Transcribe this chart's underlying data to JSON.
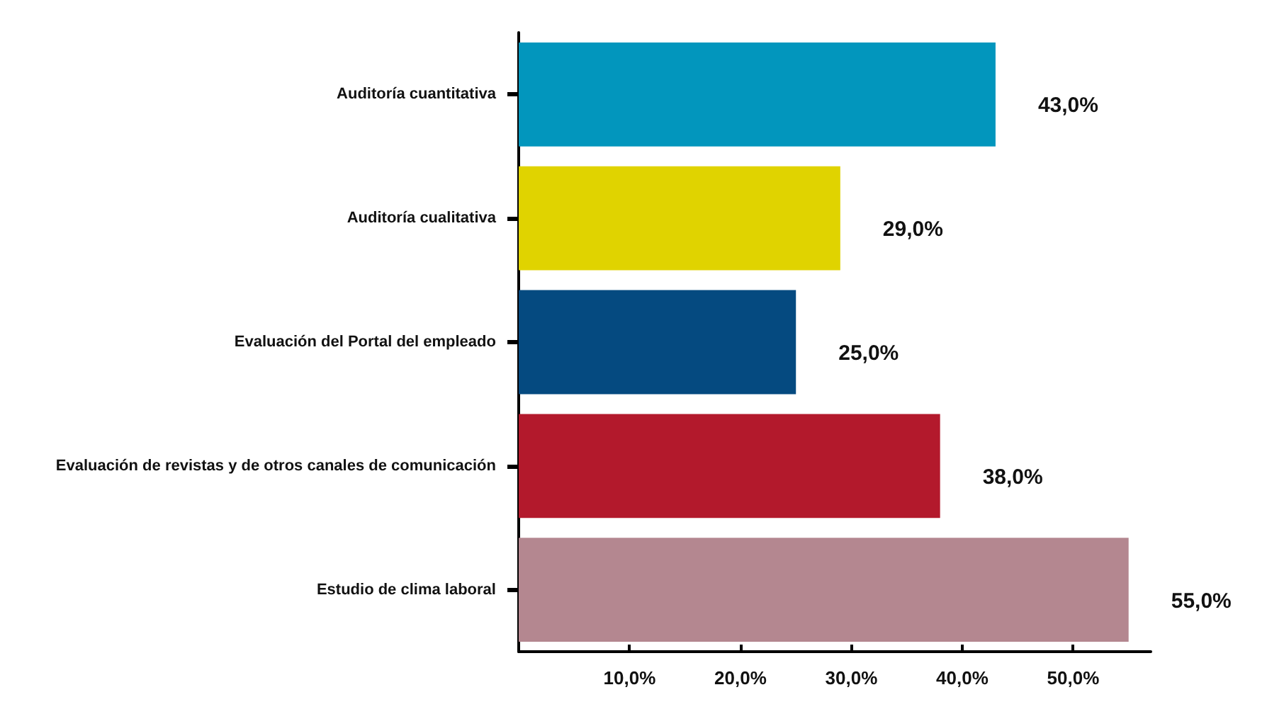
{
  "chart_data": {
    "type": "bar",
    "orientation": "horizontal",
    "categories": [
      "Auditoría cuantitativa",
      "Auditoría cualitativa",
      "Evaluación del Portal del empleado",
      "Evaluación de revistas y de otros canales de comunicación",
      "Estudio de clima laboral"
    ],
    "values": [
      43,
      29,
      25,
      38,
      55
    ],
    "colors": [
      "#0296bd",
      "#e0d300",
      "#054a80",
      "#b3192c",
      "#b48790"
    ],
    "value_labels": [
      "43,0%",
      "29,0%",
      "25,0%",
      "38,0%",
      "55,0%"
    ],
    "xlim": [
      0,
      57
    ],
    "xticks": [
      {
        "value": 10,
        "label": "10,0%"
      },
      {
        "value": 20,
        "label": "20,0%"
      },
      {
        "value": 30,
        "label": "30,0%"
      },
      {
        "value": 40,
        "label": "40,0%"
      },
      {
        "value": 50,
        "label": "50,0%"
      }
    ],
    "grid": false
  }
}
